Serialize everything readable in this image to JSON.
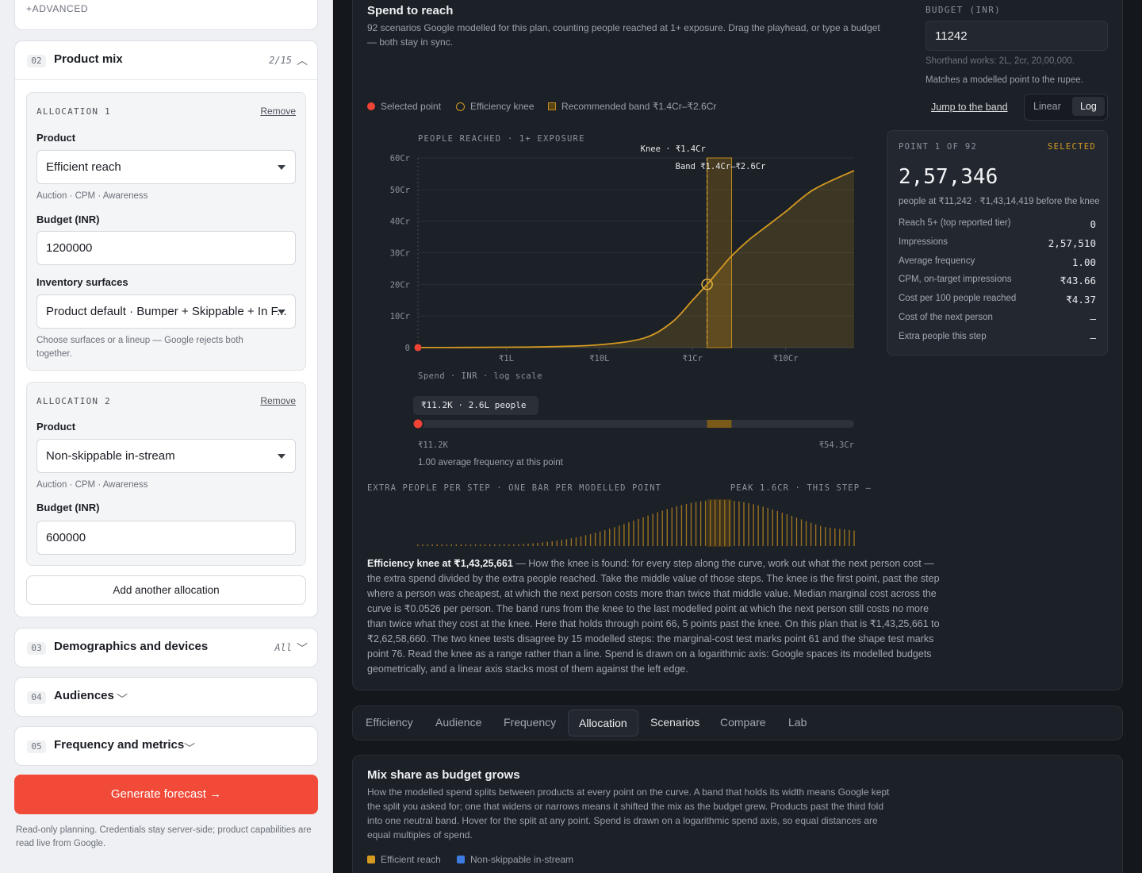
{
  "sidebar": {
    "advanced_label": "+ADVANCED",
    "product_mix": {
      "num": "02",
      "title": "Product mix",
      "count": "2/15"
    },
    "allocations": [
      {
        "title": "ALLOCATION 1",
        "remove": "Remove",
        "product_label": "Product",
        "product_value": "Efficient reach",
        "product_hint": "Auction · CPM · Awareness",
        "budget_label": "Budget (INR)",
        "budget_value": "1200000",
        "inventory_label": "Inventory surfaces",
        "inventory_value": "Product default · Bumper + Skippable + In F...",
        "inventory_hint": "Choose surfaces or a lineup — Google rejects both together."
      },
      {
        "title": "ALLOCATION 2",
        "remove": "Remove",
        "product_label": "Product",
        "product_value": "Non-skippable in-stream",
        "product_hint": "Auction · CPM · Awareness",
        "budget_label": "Budget (INR)",
        "budget_value": "600000"
      }
    ],
    "add_allocation": "Add another allocation",
    "sections": [
      {
        "num": "03",
        "title": "Demographics and devices",
        "meta": "All"
      },
      {
        "num": "04",
        "title": "Audiences",
        "meta": ""
      },
      {
        "num": "05",
        "title": "Frequency and metrics",
        "meta": ""
      }
    ],
    "generate": "Generate forecast →",
    "footnote": "Read-only planning. Credentials stay server-side; product capabilities are read live from Google."
  },
  "reach": {
    "title": "Spend to reach",
    "description": "92 scenarios Google modelled for this plan, counting people reached at 1+ exposure. Drag the playhead, or type a budget — both stay in sync.",
    "budget_label": "BUDGET (INR)",
    "budget_value": "11242",
    "budget_hint1": "Shorthand works: 2L, 2cr, 20,00,000.",
    "budget_hint2": "Matches a modelled point to the rupee.",
    "legend": {
      "selected": "Selected point",
      "knee": "Efficiency knee",
      "band": "Recommended band ₹1.4Cr–₹2.6Cr"
    },
    "jump": "Jump to the band",
    "scale": {
      "linear": "Linear",
      "log": "Log"
    },
    "y_title": "PEOPLE REACHED · 1+ EXPOSURE",
    "knee_label": "Knee · ₹1.4Cr",
    "band_label": "Band ₹1.4Cr–₹2.6Cr",
    "x_title": "Spend · INR · log scale",
    "playhead_tag": "₹11.2K · 2.6L people",
    "slider_min": "₹11.2K",
    "slider_max": "₹54.3Cr",
    "freq_note": "1.00 average frequency at this point",
    "bars_title": "EXTRA PEOPLE PER STEP · ONE BAR PER MODELLED POINT",
    "bars_peak": "PEAK 1.6CR · THIS STEP —",
    "point": {
      "header": "POINT 1 OF 92",
      "badge": "SELECTED",
      "value": "2,57,346",
      "sub": "people at ₹11,242 · ₹1,43,14,419 before the knee",
      "rows": [
        {
          "k": "Reach 5+ (top reported tier)",
          "v": "0"
        },
        {
          "k": "Impressions",
          "v": "2,57,510"
        },
        {
          "k": "Average frequency",
          "v": "1.00"
        },
        {
          "k": "CPM, on-target impressions",
          "v": "₹43.66"
        },
        {
          "k": "Cost per 100 people reached",
          "v": "₹4.37"
        },
        {
          "k": "Cost of the next person",
          "v": "—"
        },
        {
          "k": "Extra people this step",
          "v": "—"
        }
      ]
    },
    "para_bold": "Efficiency knee at ₹1,43,25,661",
    "para_rest": " — How the knee is found: for every step along the curve, work out what the next person cost — the extra spend divided by the extra people reached. Take the middle value of those steps. The knee is the first point, past the step where a person was cheapest, at which the next person costs more than twice that middle value. Median marginal cost across the curve is ₹0.0526 per person. The band runs from the knee to the last modelled point at which the next person still costs no more than twice what they cost at the knee. Here that holds through point 66, 5 points past the knee. On this plan that is ₹1,43,25,661 to ₹2,62,58,660. The two knee tests disagree by 15 modelled steps: the marginal-cost test marks point 61 and the shape test marks point 76. Read the knee as a range rather than a line. Spend is drawn on a logarithmic axis: Google spaces its modelled budgets geometrically, and a linear axis stacks most of them against the left edge."
  },
  "tabs": [
    "Efficiency",
    "Audience",
    "Frequency",
    "Allocation",
    "Scenarios",
    "Compare",
    "Lab"
  ],
  "mix": {
    "title": "Mix share as budget grows",
    "description": "How the modelled spend splits between products at every point on the curve. A band that holds its width means Google kept the split you asked for; one that widens or narrows means it shifted the mix as the budget grew. Products past the third fold into one neutral band. Hover for the split at any point. Spend is drawn on a logarithmic spend axis, so equal distances are equal multiples of spend.",
    "legend": [
      "Efficient reach",
      "Non-skippable in-stream"
    ]
  },
  "chart_data": {
    "type": "area",
    "title": "",
    "xlabel": "Spend · INR · log scale",
    "ylabel": "PEOPLE REACHED · 1+ EXPOSURE",
    "x_scale": "log",
    "x_ticks": [
      "₹1L",
      "₹10L",
      "₹1Cr",
      "₹10Cr"
    ],
    "y_ticks": [
      "0",
      "10Cr",
      "20Cr",
      "30Cr",
      "40Cr",
      "50Cr",
      "60Cr"
    ],
    "ylim": [
      0,
      60
    ],
    "y_unit": "Cr",
    "x_inr": [
      11242,
      30000,
      100000,
      300000,
      1000000,
      3000000,
      6000000,
      10000000,
      14325661,
      20000000,
      26258660,
      40000000,
      60000000,
      100000000,
      200000000,
      543000000
    ],
    "y_cr": [
      0.026,
      0.05,
      0.12,
      0.3,
      0.9,
      3.0,
      8.0,
      15.0,
      20.0,
      25.0,
      29.0,
      34.0,
      38.0,
      43.0,
      50.0,
      56.0
    ],
    "selected": {
      "x": 11242,
      "y": 0.026
    },
    "knee": {
      "x": 14325661,
      "y": 20.0
    },
    "band": [
      14325661,
      26258660
    ],
    "colors": {
      "line": "#d49a22",
      "selected": "#ef4335",
      "band": "#7a5a18"
    }
  }
}
